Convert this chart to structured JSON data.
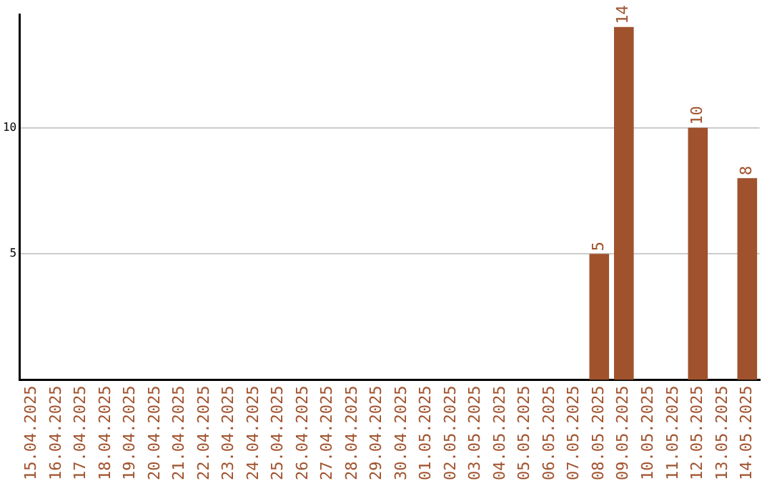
{
  "chart_data": {
    "type": "bar",
    "categories": [
      "15.04.2025",
      "16.04.2025",
      "17.04.2025",
      "18.04.2025",
      "19.04.2025",
      "20.04.2025",
      "21.04.2025",
      "22.04.2025",
      "23.04.2025",
      "24.04.2025",
      "25.04.2025",
      "26.04.2025",
      "27.04.2025",
      "28.04.2025",
      "29.04.2025",
      "30.04.2025",
      "01.05.2025",
      "02.05.2025",
      "03.05.2025",
      "04.05.2025",
      "05.05.2025",
      "06.05.2025",
      "07.05.2025",
      "08.05.2025",
      "09.05.2025",
      "10.05.2025",
      "11.05.2025",
      "12.05.2025",
      "13.05.2025",
      "14.05.2025"
    ],
    "values": [
      0,
      0,
      0,
      0,
      0,
      0,
      0,
      0,
      0,
      0,
      0,
      0,
      0,
      0,
      0,
      0,
      0,
      0,
      0,
      0,
      0,
      0,
      0,
      5,
      14,
      0,
      0,
      10,
      0,
      8
    ],
    "value_labels": [
      null,
      null,
      null,
      null,
      null,
      null,
      null,
      null,
      null,
      null,
      null,
      null,
      null,
      null,
      null,
      null,
      null,
      null,
      null,
      null,
      null,
      null,
      null,
      "5",
      "14",
      null,
      null,
      "10",
      null,
      "8"
    ],
    "color": "#a0522d",
    "ylim": [
      0,
      14.5
    ],
    "yticks": [
      5,
      10
    ],
    "grid": "y",
    "legend": false
  }
}
